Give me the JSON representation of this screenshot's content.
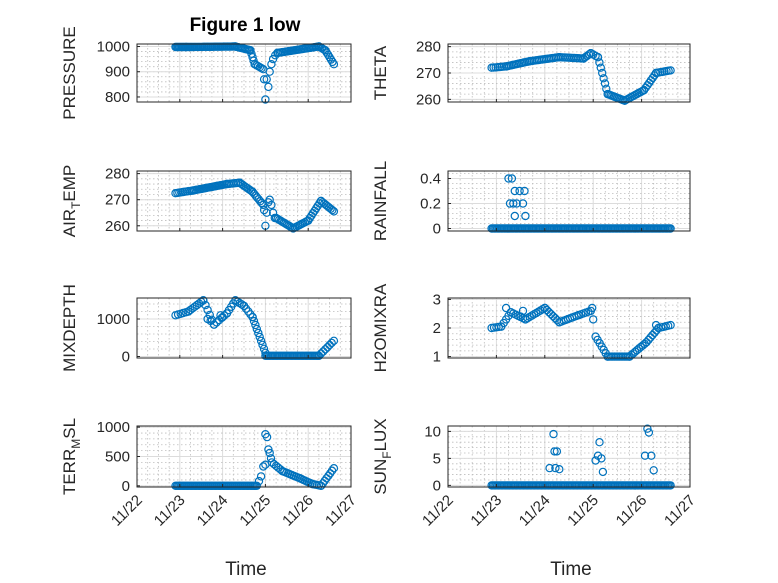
{
  "figure": {
    "title": "Figure 1 low",
    "marker_color": "#0072BD",
    "grid_color": "#dcdcdc",
    "axis_color": "#262626"
  },
  "x_ticks": [
    "11/22",
    "11/23",
    "11/24",
    "11/25",
    "11/26",
    "11/27"
  ],
  "chart_data": [
    {
      "type": "scatter",
      "ylabel": "PRESSURE",
      "ylabel_parts": [
        "PRESSURE"
      ],
      "xlim": [
        0,
        5
      ],
      "ylim": [
        780,
        1010
      ],
      "yticks": [
        800,
        900,
        1000
      ],
      "title": "Figure 1 low",
      "xlabel": "",
      "segments": [
        {
          "x0": 0.9,
          "x1": 1.15,
          "y0": 998,
          "y1": 998,
          "n": 10
        },
        {
          "x0": 1.15,
          "x1": 2.3,
          "y0": 998,
          "y1": 1000,
          "n": 38
        },
        {
          "x0": 2.3,
          "x1": 2.65,
          "y0": 1000,
          "y1": 985,
          "n": 12
        },
        {
          "x0": 2.65,
          "x1": 2.75,
          "y0": 985,
          "y1": 930,
          "n": 5
        },
        {
          "x0": 2.75,
          "x1": 2.95,
          "y0": 930,
          "y1": 910,
          "n": 6
        }
      ],
      "points": [
        [
          2.97,
          870
        ],
        [
          3.0,
          790
        ],
        [
          3.03,
          870
        ],
        [
          3.07,
          840
        ],
        [
          3.1,
          900
        ],
        [
          3.14,
          930
        ],
        [
          3.18,
          950
        ],
        [
          3.23,
          965
        ],
        [
          3.28,
          975
        ]
      ],
      "tail_segments": [
        {
          "x0": 3.3,
          "x1": 4.05,
          "y0": 975,
          "y1": 995,
          "n": 22
        },
        {
          "x0": 4.05,
          "x1": 4.25,
          "y0": 995,
          "y1": 1000,
          "n": 7
        },
        {
          "x0": 4.25,
          "x1": 4.4,
          "y0": 1000,
          "y1": 985,
          "n": 5
        },
        {
          "x0": 4.4,
          "x1": 4.6,
          "y0": 985,
          "y1": 930,
          "n": 7
        }
      ]
    },
    {
      "type": "scatter",
      "ylabel": "THETA",
      "ylabel_parts": [
        "THETA"
      ],
      "xlim": [
        0,
        5
      ],
      "ylim": [
        259,
        281
      ],
      "yticks": [
        260,
        270,
        280
      ],
      "xlabel": "",
      "segments": [
        {
          "x0": 0.9,
          "x1": 1.2,
          "y0": 272,
          "y1": 272.5,
          "n": 8
        },
        {
          "x0": 1.2,
          "x1": 1.7,
          "y0": 272.5,
          "y1": 274.5,
          "n": 16
        },
        {
          "x0": 1.7,
          "x1": 2.3,
          "y0": 274.5,
          "y1": 276,
          "n": 18
        },
        {
          "x0": 2.3,
          "x1": 2.8,
          "y0": 276,
          "y1": 275.5,
          "n": 14
        },
        {
          "x0": 2.8,
          "x1": 2.95,
          "y0": 275.5,
          "y1": 277.5,
          "n": 5
        },
        {
          "x0": 2.95,
          "x1": 3.1,
          "y0": 277.5,
          "y1": 276,
          "n": 4
        },
        {
          "x0": 3.1,
          "x1": 3.3,
          "y0": 276,
          "y1": 262,
          "n": 8
        },
        {
          "x0": 3.3,
          "x1": 3.65,
          "y0": 262,
          "y1": 259.5,
          "n": 12
        },
        {
          "x0": 3.65,
          "x1": 4.05,
          "y0": 259.5,
          "y1": 263.5,
          "n": 12
        },
        {
          "x0": 4.05,
          "x1": 4.3,
          "y0": 263.5,
          "y1": 270,
          "n": 8
        },
        {
          "x0": 4.3,
          "x1": 4.6,
          "y0": 270,
          "y1": 271,
          "n": 8
        }
      ]
    },
    {
      "type": "scatter",
      "ylabel": "AIR_TEMP",
      "ylabel_parts": [
        "AIR",
        "T",
        "EMP"
      ],
      "xlim": [
        0,
        5
      ],
      "ylim": [
        258,
        281
      ],
      "yticks": [
        260,
        270,
        280
      ],
      "xlabel": "",
      "segments": [
        {
          "x0": 0.9,
          "x1": 1.3,
          "y0": 272.5,
          "y1": 273.5,
          "n": 10
        },
        {
          "x0": 1.3,
          "x1": 2.1,
          "y0": 273.5,
          "y1": 276,
          "n": 24
        },
        {
          "x0": 2.1,
          "x1": 2.4,
          "y0": 276,
          "y1": 276.5,
          "n": 8
        },
        {
          "x0": 2.4,
          "x1": 2.7,
          "y0": 276.5,
          "y1": 273,
          "n": 9
        },
        {
          "x0": 2.7,
          "x1": 2.95,
          "y0": 273,
          "y1": 268,
          "n": 8
        }
      ],
      "points": [
        [
          2.97,
          266
        ],
        [
          3.0,
          260
        ],
        [
          3.03,
          265
        ],
        [
          3.07,
          269
        ],
        [
          3.1,
          270
        ],
        [
          3.14,
          268
        ],
        [
          3.18,
          265
        ],
        [
          3.22,
          263
        ]
      ],
      "tail_segments": [
        {
          "x0": 3.25,
          "x1": 3.65,
          "y0": 263,
          "y1": 259,
          "n": 12
        },
        {
          "x0": 3.65,
          "x1": 4.0,
          "y0": 259,
          "y1": 262,
          "n": 10
        },
        {
          "x0": 4.0,
          "x1": 4.3,
          "y0": 262,
          "y1": 269.5,
          "n": 9
        },
        {
          "x0": 4.3,
          "x1": 4.6,
          "y0": 269.5,
          "y1": 265.5,
          "n": 9
        }
      ]
    },
    {
      "type": "scatter",
      "ylabel": "RAINFALL",
      "ylabel_parts": [
        "RAINFALL"
      ],
      "xlim": [
        0,
        5
      ],
      "ylim": [
        -0.02,
        0.46
      ],
      "yticks": [
        0,
        0.2,
        0.4
      ],
      "xlabel": "",
      "segments": [
        {
          "x0": 0.9,
          "x1": 4.6,
          "y0": 0,
          "y1": 0,
          "n": 130
        }
      ],
      "points": [
        [
          1.25,
          0.4
        ],
        [
          1.32,
          0.4
        ],
        [
          1.28,
          0.2
        ],
        [
          1.35,
          0.2
        ],
        [
          1.38,
          0.1
        ],
        [
          1.42,
          0.2
        ],
        [
          1.38,
          0.3
        ],
        [
          1.48,
          0.3
        ],
        [
          1.55,
          0.2
        ],
        [
          1.58,
          0.3
        ],
        [
          1.6,
          0.1
        ]
      ]
    },
    {
      "type": "scatter",
      "ylabel": "MIXDEPTH",
      "ylabel_parts": [
        "MIXDEPTH"
      ],
      "xlim": [
        0,
        5
      ],
      "ylim": [
        -40,
        1560
      ],
      "yticks": [
        0,
        1000
      ],
      "xlabel": "",
      "segments": [
        {
          "x0": 0.9,
          "x1": 1.2,
          "y0": 1100,
          "y1": 1200,
          "n": 6
        },
        {
          "x0": 1.2,
          "x1": 1.55,
          "y0": 1200,
          "y1": 1500,
          "n": 8
        },
        {
          "x0": 1.55,
          "x1": 1.8,
          "y0": 1500,
          "y1": 850,
          "n": 6
        },
        {
          "x0": 1.8,
          "x1": 2.1,
          "y0": 850,
          "y1": 1150,
          "n": 6
        },
        {
          "x0": 2.1,
          "x1": 2.3,
          "y0": 1150,
          "y1": 1500,
          "n": 5
        },
        {
          "x0": 2.3,
          "x1": 2.5,
          "y0": 1500,
          "y1": 1350,
          "n": 5
        },
        {
          "x0": 2.5,
          "x1": 2.7,
          "y0": 1350,
          "y1": 1050,
          "n": 5
        },
        {
          "x0": 2.7,
          "x1": 3.0,
          "y0": 1050,
          "y1": 100,
          "n": 10
        },
        {
          "x0": 3.0,
          "x1": 4.25,
          "y0": 20,
          "y1": 20,
          "n": 40
        },
        {
          "x0": 4.25,
          "x1": 4.6,
          "y0": 20,
          "y1": 420,
          "n": 8
        }
      ],
      "points": [
        [
          1.65,
          1000
        ],
        [
          1.72,
          950
        ],
        [
          1.95,
          1100
        ],
        [
          2.0,
          1050
        ]
      ]
    },
    {
      "type": "scatter",
      "ylabel": "H2OMIXRA",
      "ylabel_parts": [
        "H2OMIXRA"
      ],
      "xlim": [
        0,
        5
      ],
      "ylim": [
        0.95,
        3.05
      ],
      "yticks": [
        1,
        2,
        3
      ],
      "xlabel": "",
      "segments": [
        {
          "x0": 0.9,
          "x1": 1.1,
          "y0": 2.0,
          "y1": 2.05,
          "n": 5
        },
        {
          "x0": 1.1,
          "x1": 1.3,
          "y0": 2.05,
          "y1": 2.55,
          "n": 5
        },
        {
          "x0": 1.3,
          "x1": 1.6,
          "y0": 2.55,
          "y1": 2.3,
          "n": 7
        },
        {
          "x0": 1.6,
          "x1": 2.0,
          "y0": 2.3,
          "y1": 2.7,
          "n": 10
        },
        {
          "x0": 2.0,
          "x1": 2.3,
          "y0": 2.7,
          "y1": 2.2,
          "n": 8
        },
        {
          "x0": 2.3,
          "x1": 2.7,
          "y0": 2.2,
          "y1": 2.45,
          "n": 10
        },
        {
          "x0": 2.7,
          "x1": 2.95,
          "y0": 2.45,
          "y1": 2.6,
          "n": 6
        },
        {
          "x0": 3.05,
          "x1": 3.3,
          "y0": 1.7,
          "y1": 1.0,
          "n": 7
        },
        {
          "x0": 3.3,
          "x1": 3.75,
          "y0": 1.0,
          "y1": 1.0,
          "n": 14
        },
        {
          "x0": 3.75,
          "x1": 4.1,
          "y0": 1.0,
          "y1": 1.5,
          "n": 10
        },
        {
          "x0": 4.1,
          "x1": 4.35,
          "y0": 1.5,
          "y1": 2.0,
          "n": 7
        },
        {
          "x0": 4.35,
          "x1": 4.6,
          "y0": 2.0,
          "y1": 2.1,
          "n": 6
        }
      ],
      "points": [
        [
          1.2,
          2.7
        ],
        [
          1.5,
          2.4
        ],
        [
          1.55,
          2.6
        ],
        [
          2.98,
          2.7
        ],
        [
          3.0,
          2.3
        ],
        [
          4.3,
          2.1
        ]
      ]
    },
    {
      "type": "scatter",
      "ylabel": "TERR_MSL",
      "ylabel_parts": [
        "TERR",
        "M",
        "SL"
      ],
      "xlim": [
        0,
        5
      ],
      "ylim": [
        -20,
        1020
      ],
      "yticks": [
        0,
        500,
        1000
      ],
      "xlabel": "Time",
      "segments": [
        {
          "x0": 0.9,
          "x1": 2.8,
          "y0": 0,
          "y1": 0,
          "n": 62
        },
        {
          "x0": 3.15,
          "x1": 3.4,
          "y0": 400,
          "y1": 250,
          "n": 6
        },
        {
          "x0": 3.4,
          "x1": 3.8,
          "y0": 250,
          "y1": 130,
          "n": 10
        },
        {
          "x0": 3.8,
          "x1": 4.1,
          "y0": 130,
          "y1": 30,
          "n": 8
        },
        {
          "x0": 4.1,
          "x1": 4.3,
          "y0": 30,
          "y1": 0,
          "n": 5
        },
        {
          "x0": 4.3,
          "x1": 4.6,
          "y0": 0,
          "y1": 300,
          "n": 8
        }
      ],
      "points": [
        [
          2.85,
          80
        ],
        [
          2.9,
          160
        ],
        [
          2.95,
          330
        ],
        [
          3.0,
          360
        ],
        [
          3.0,
          880
        ],
        [
          3.04,
          830
        ],
        [
          3.07,
          620
        ],
        [
          3.1,
          560
        ],
        [
          3.13,
          470
        ]
      ]
    },
    {
      "type": "scatter",
      "ylabel": "SUN_FLUX",
      "ylabel_parts": [
        "SUN",
        "F",
        "LUX"
      ],
      "xlim": [
        0,
        5
      ],
      "ylim": [
        -0.3,
        11
      ],
      "yticks": [
        0,
        5,
        10
      ],
      "xlabel": "Time",
      "segments": [
        {
          "x0": 0.9,
          "x1": 4.6,
          "y0": 0,
          "y1": 0,
          "n": 130
        }
      ],
      "points": [
        [
          2.1,
          3.2
        ],
        [
          2.18,
          9.5
        ],
        [
          2.2,
          6.3
        ],
        [
          2.22,
          3.2
        ],
        [
          2.25,
          6.3
        ],
        [
          2.3,
          3.0
        ],
        [
          3.05,
          4.6
        ],
        [
          3.1,
          5.5
        ],
        [
          3.13,
          8.0
        ],
        [
          3.17,
          5.0
        ],
        [
          3.2,
          2.5
        ],
        [
          4.07,
          5.5
        ],
        [
          4.12,
          10.5
        ],
        [
          4.15,
          9.8
        ],
        [
          4.2,
          5.5
        ],
        [
          4.25,
          2.8
        ]
      ]
    }
  ]
}
